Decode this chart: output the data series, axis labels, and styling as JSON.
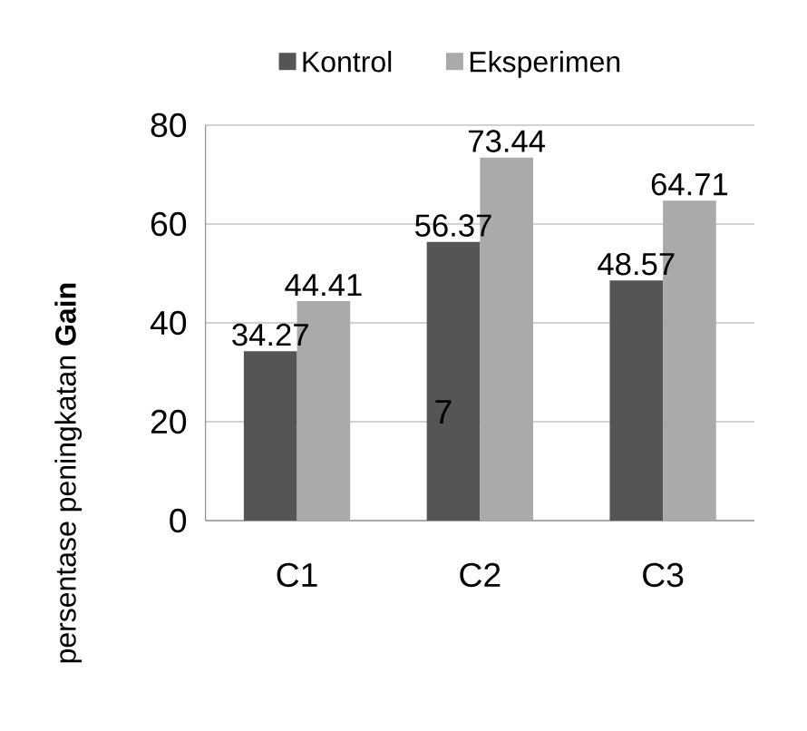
{
  "chart_data": {
    "type": "bar",
    "ylabel": "persentase peningkatan **Gain**",
    "categories": [
      "C1",
      "C2",
      "C3"
    ],
    "series": [
      {
        "name": "Kontrol",
        "color": "#555555",
        "values": [
          34.27,
          56.37,
          48.57
        ]
      },
      {
        "name": "Eksperimen",
        "color": "#aaaaaa",
        "values": [
          44.41,
          73.44,
          64.71
        ]
      }
    ],
    "ylim": [
      0,
      80
    ],
    "yticks": [
      0,
      20,
      40,
      60,
      80
    ],
    "grid": "y",
    "legend": "top",
    "data_labels": true,
    "annotations": [
      "7"
    ]
  }
}
